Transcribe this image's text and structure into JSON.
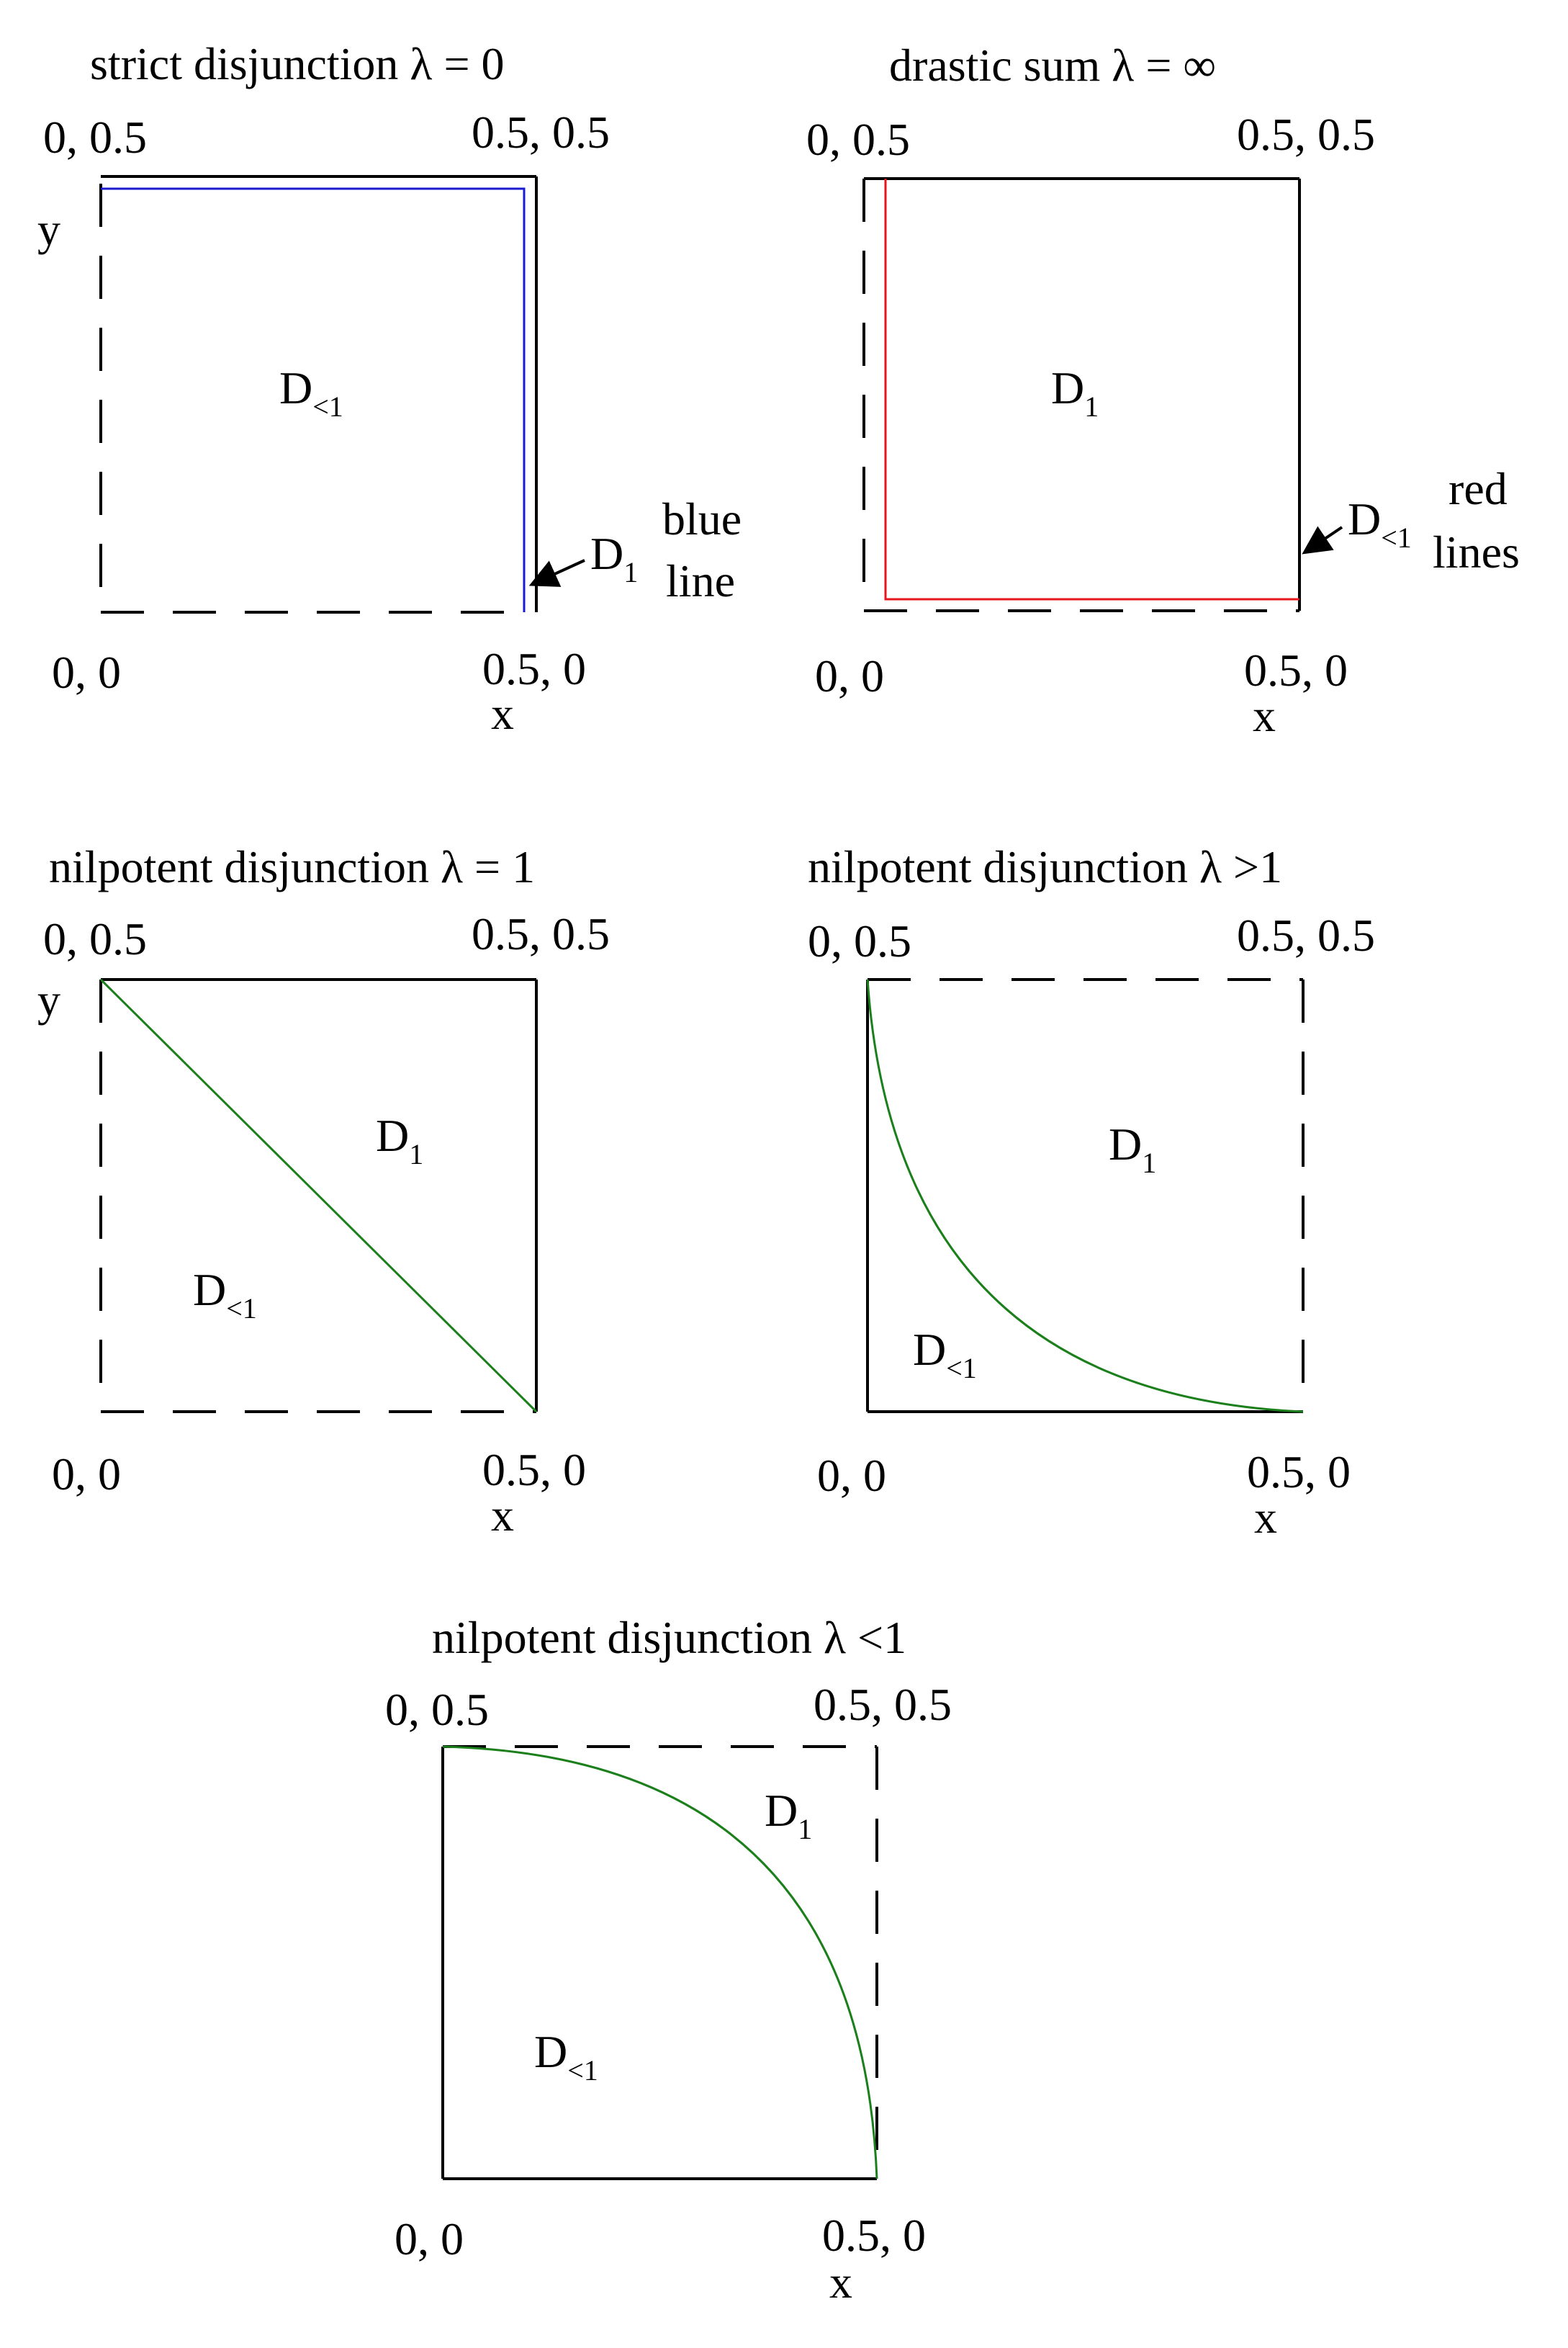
{
  "colors": {
    "blue": "#1a1ad0",
    "red": "#e8161b",
    "green": "#1b7f1b",
    "black": "#000000"
  },
  "panels": [
    {
      "id": "p1",
      "title": "strict disjunction  λ = 0",
      "corner_tl": "0, 0.5",
      "corner_tr": "0.5, 0.5",
      "corner_bl": "0, 0",
      "corner_br": "0.5, 0",
      "x_label": "x",
      "y_label": "y",
      "region_a": {
        "main": "D",
        "sub": "<1"
      },
      "region_b": {
        "main": "D",
        "sub": "1"
      },
      "note": [
        "blue",
        "line"
      ]
    },
    {
      "id": "p2",
      "title": "drastic sum  λ = ∞",
      "corner_tl": "0, 0.5",
      "corner_tr": "0.5, 0.5",
      "corner_bl": "0, 0",
      "corner_br": "0.5, 0",
      "x_label": "x",
      "region_a": {
        "main": "D",
        "sub": "1"
      },
      "region_b": {
        "main": "D",
        "sub": "<1"
      },
      "note": [
        "red",
        "lines"
      ]
    },
    {
      "id": "p3",
      "title": "nilpotent disjunction λ = 1",
      "corner_tl": "0, 0.5",
      "corner_tr": "0.5, 0.5",
      "corner_bl": "0, 0",
      "corner_br": "0.5, 0",
      "x_label": "x",
      "y_label": "y",
      "region_a": {
        "main": "D",
        "sub": "1"
      },
      "region_b": {
        "main": "D",
        "sub": "<1"
      }
    },
    {
      "id": "p4",
      "title": "nilpotent disjunction  λ >1",
      "corner_tl": "0, 0.5",
      "corner_tr": "0.5, 0.5",
      "corner_bl": "0, 0",
      "corner_br": "0.5, 0",
      "x_label": "x",
      "region_a": {
        "main": "D",
        "sub": "1"
      },
      "region_b": {
        "main": "D",
        "sub": "<1"
      }
    },
    {
      "id": "p5",
      "title": "nilpotent disjunction λ <1",
      "corner_tl": "0, 0.5",
      "corner_tr": "0.5, 0.5",
      "corner_bl": "0, 0",
      "corner_br": "0.5, 0",
      "x_label": "x",
      "region_a": {
        "main": "D",
        "sub": "1"
      },
      "region_b": {
        "main": "D",
        "sub": "<1"
      }
    }
  ]
}
